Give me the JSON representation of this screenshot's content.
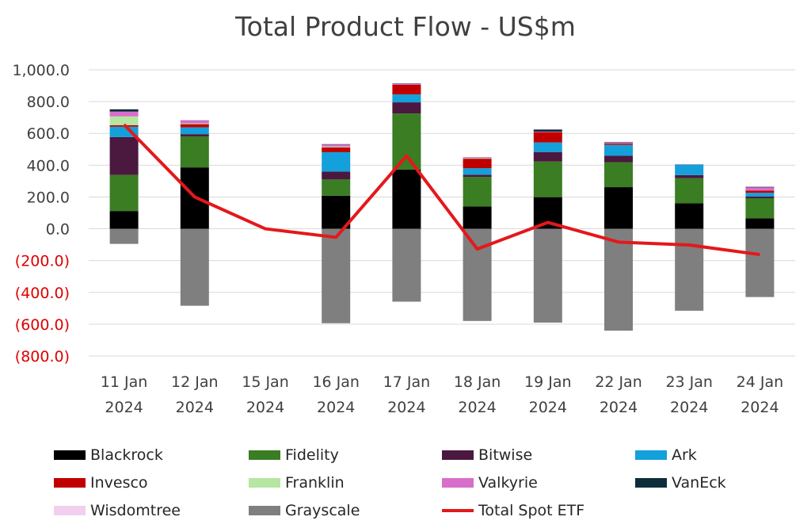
{
  "chart_data": {
    "type": "bar",
    "title": "Total Product Flow - US$m",
    "categories": [
      "11 Jan 2024",
      "12 Jan 2024",
      "15 Jan 2024",
      "16 Jan 2024",
      "17 Jan 2024",
      "18 Jan 2024",
      "19 Jan 2024",
      "22 Jan 2024",
      "23 Jan 2024",
      "24 Jan 2024"
    ],
    "ylim": [
      -800,
      1000
    ],
    "yticks": [
      "1,000.0",
      "800.0",
      "600.0",
      "400.0",
      "200.0",
      "0.0",
      "(200.0)",
      "(400.0)",
      "(600.0)",
      "(800.0)"
    ],
    "ytick_values": [
      1000,
      800,
      600,
      400,
      200,
      0,
      -200,
      -400,
      -600,
      -800
    ],
    "grid": true,
    "legend_position": "bottom",
    "series": [
      {
        "name": "Blackrock",
        "color": "#000000",
        "values": [
          111.7,
          386.0,
          0,
          208.1,
          372.0,
          140.6,
          199.0,
          261.7,
          160.2,
          66.3
        ]
      },
      {
        "name": "Fidelity",
        "color": "#3a7d23",
        "values": [
          227.0,
          195.3,
          0,
          102.0,
          353.2,
          185.7,
          223.8,
          157.5,
          157.7,
          125.9
        ]
      },
      {
        "name": "Bitwise",
        "color": "#4b1840",
        "values": [
          237.9,
          14.0,
          0,
          49.5,
          70.0,
          14.0,
          60.0,
          40.0,
          20.0,
          10.0
        ]
      },
      {
        "name": "Ark",
        "color": "#14a0da",
        "values": [
          65.3,
          42.7,
          0,
          122.2,
          50.0,
          40.5,
          60.0,
          68.5,
          65.0,
          24.0
        ]
      },
      {
        "name": "Invesco",
        "color": "#c00000",
        "values": [
          10.0,
          20.0,
          0,
          30.0,
          60.0,
          60.0,
          65.0,
          8.0,
          0,
          14.0
        ]
      },
      {
        "name": "Franklin",
        "color": "#b5e6a2",
        "values": [
          55.0,
          5.0,
          0,
          5.0,
          0,
          3.0,
          0,
          0,
          0,
          0
        ]
      },
      {
        "name": "Valkyrie",
        "color": "#d86ecc",
        "values": [
          30.0,
          18.0,
          0,
          13.0,
          5.0,
          5.0,
          3.0,
          5.0,
          0,
          20.0
        ]
      },
      {
        "name": "VanEck",
        "color": "#0c2e3b",
        "values": [
          15.0,
          2.0,
          0,
          3.0,
          3.0,
          2.0,
          14.0,
          4.0,
          3.0,
          4.0
        ]
      },
      {
        "name": "Wisdomtree",
        "color": "#f2cfee",
        "values": [
          2.0,
          1.0,
          0,
          2.0,
          2.0,
          1.0,
          2.0,
          2.0,
          1.0,
          2.0
        ]
      },
      {
        "name": "Grayscale",
        "color": "#7f7f7f",
        "values": [
          -95.1,
          -484.1,
          0,
          -594.0,
          -458.4,
          -579.6,
          -590.0,
          -640.5,
          -515.3,
          -429.3
        ]
      }
    ],
    "line_series": {
      "name": "Total Spot ETF",
      "color": "#e4181b",
      "values": [
        655.3,
        200.0,
        0,
        -53.6,
        459.0,
        -127.5,
        40.0,
        -83.8,
        -102.0,
        -162.0
      ]
    }
  }
}
